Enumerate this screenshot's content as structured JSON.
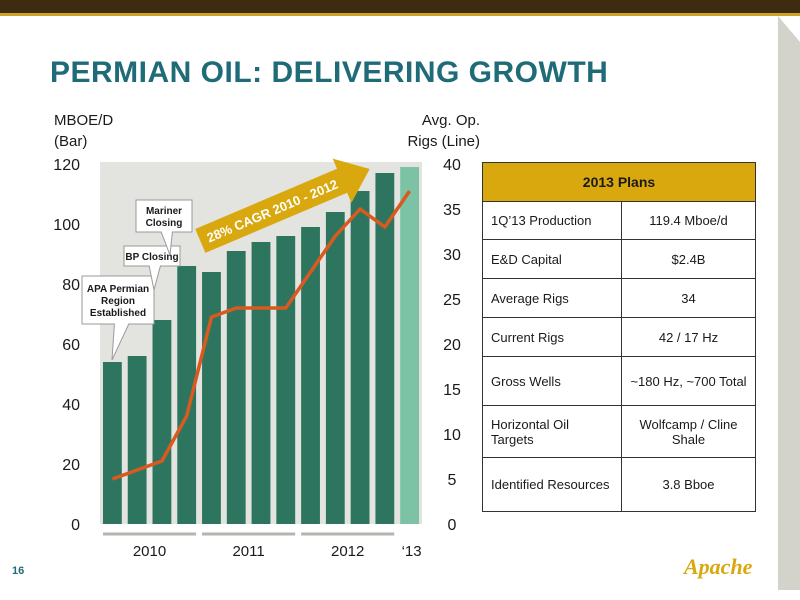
{
  "slide": {
    "title": "PERMIAN OIL: DELIVERING GROWTH",
    "page_number": "16",
    "logo_text": "Apache"
  },
  "chart_data": {
    "type": "bar",
    "y_left_label": "MBOE/D\n(Bar)",
    "y_right_label": "Avg. Op.\nRigs (Line)",
    "y_left_range": [
      0,
      120
    ],
    "y_left_ticks": [
      "0",
      "20",
      "40",
      "60",
      "80",
      "100",
      "120"
    ],
    "y_right_range": [
      0,
      40
    ],
    "y_right_ticks": [
      "0",
      "5",
      "10",
      "15",
      "20",
      "25",
      "30",
      "35",
      "40"
    ],
    "x_groups": [
      "2010",
      "2011",
      "2012",
      "‘13"
    ],
    "group_sizes": [
      4,
      4,
      4,
      1
    ],
    "bar_values": [
      54,
      56,
      68,
      86,
      84,
      91,
      94,
      96,
      99,
      104,
      111,
      117,
      119
    ],
    "rigs_values": [
      5,
      6,
      7,
      12,
      23,
      24,
      24,
      24,
      28,
      32,
      35,
      33,
      37
    ],
    "colors": {
      "bar": "#2e7560",
      "bar_last": "#7cc2a4",
      "line": "#d95a1f",
      "arrow": "#d9a80f"
    },
    "callouts": [
      {
        "text": "APA Permian\nRegion\nEstablished",
        "bar_index": 1
      },
      {
        "text": "BP Closing",
        "bar_index": 2
      },
      {
        "text": "Mariner\nClosing",
        "bar_index": 3
      }
    ],
    "arrow_label": "28% CAGR 2010 - 2012"
  },
  "plans": {
    "header": "2013 Plans",
    "rows": [
      {
        "label": "1Q’13 Production",
        "value": "119.4 Mboe/d"
      },
      {
        "label": "E&D Capital",
        "value": "$2.4B"
      },
      {
        "label": "Average Rigs",
        "value": "34"
      },
      {
        "label": "Current Rigs",
        "value": "42 / 17 Hz"
      },
      {
        "label": "Gross Wells",
        "value": "~180 Hz, ~700 Total"
      },
      {
        "label": "Horizontal Oil Targets",
        "value": "Wolfcamp / Cline Shale"
      },
      {
        "label": "Identified Resources",
        "value": "3.8 Bboe"
      }
    ]
  }
}
